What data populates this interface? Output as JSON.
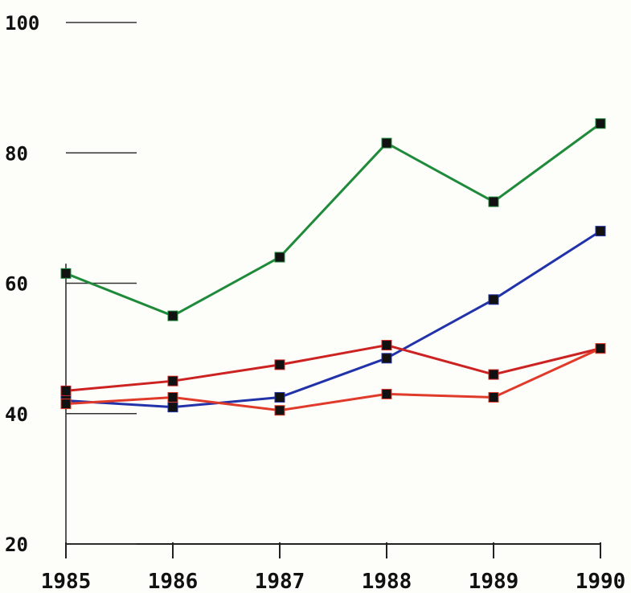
{
  "chart_data": {
    "type": "line",
    "title": "",
    "xlabel": "",
    "ylabel": "",
    "x": [
      "1985",
      "1986",
      "1987",
      "1988",
      "1989",
      "1990"
    ],
    "ylim": [
      20,
      100
    ],
    "yticks": [
      "20",
      "40",
      "60",
      "80",
      "100"
    ],
    "grid": false,
    "series": [
      {
        "color": "#1e8a3a",
        "values": [
          61.5,
          55,
          64,
          81.5,
          72.5,
          84.5
        ]
      },
      {
        "color": "#2233aa",
        "values": [
          42,
          41,
          42.5,
          48.5,
          57.5,
          68
        ]
      },
      {
        "color": "#cc2222",
        "values": [
          43.5,
          45,
          47.5,
          50.5,
          46,
          50
        ]
      },
      {
        "color": "#e03a2a",
        "values": [
          41.5,
          42.5,
          40.5,
          43,
          42.5,
          50
        ]
      }
    ]
  }
}
